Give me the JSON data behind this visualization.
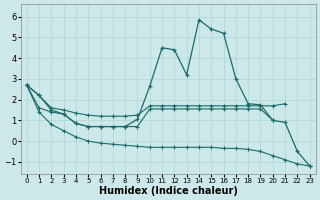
{
  "xlabel": "Humidex (Indice chaleur)",
  "bg_color": "#cce8e8",
  "grid_color": "#b0d4d4",
  "line_color": "#1a6b6b",
  "xlim": [
    -0.5,
    23.5
  ],
  "ylim": [
    -1.6,
    6.6
  ],
  "xticks": [
    0,
    1,
    2,
    3,
    4,
    5,
    6,
    7,
    8,
    9,
    10,
    11,
    12,
    13,
    14,
    15,
    16,
    17,
    18,
    19,
    20,
    21,
    22,
    23
  ],
  "yticks": [
    -1,
    0,
    1,
    2,
    3,
    4,
    5,
    6
  ],
  "line1_x": [
    0,
    1,
    2,
    3,
    4,
    5,
    6,
    7,
    8,
    9,
    10,
    11,
    12,
    13,
    14,
    15,
    16,
    17,
    18,
    19,
    20,
    21,
    22,
    23
  ],
  "line1_y": [
    2.7,
    2.2,
    1.5,
    1.3,
    0.85,
    0.7,
    0.7,
    0.7,
    0.7,
    1.05,
    2.65,
    4.5,
    4.4,
    3.2,
    5.85,
    5.4,
    5.2,
    3.0,
    1.8,
    1.75,
    1.0,
    0.9,
    -0.5,
    -1.2
  ],
  "line2_x": [
    0,
    1,
    2,
    3,
    4,
    5,
    6,
    7,
    8,
    9,
    10,
    11,
    12,
    13,
    14,
    15,
    16,
    17,
    18,
    19,
    20,
    21
  ],
  "line2_y": [
    2.7,
    2.2,
    1.6,
    1.5,
    1.35,
    1.25,
    1.2,
    1.2,
    1.2,
    1.25,
    1.7,
    1.7,
    1.7,
    1.7,
    1.7,
    1.7,
    1.7,
    1.7,
    1.7,
    1.7,
    1.7,
    1.8
  ],
  "line3_x": [
    0,
    1,
    2,
    3,
    4,
    5,
    6,
    7,
    8,
    9,
    10,
    11,
    12,
    13,
    14,
    15,
    16,
    17,
    18,
    19,
    20
  ],
  "line3_y": [
    2.7,
    1.6,
    1.4,
    1.3,
    0.85,
    0.7,
    0.7,
    0.7,
    0.7,
    0.7,
    1.55,
    1.55,
    1.55,
    1.55,
    1.55,
    1.55,
    1.55,
    1.55,
    1.55,
    1.55,
    1.0
  ],
  "line4_x": [
    0,
    1,
    2,
    3,
    4,
    5,
    6,
    7,
    8,
    9,
    10,
    11,
    12,
    13,
    14,
    15,
    16,
    17,
    18,
    19,
    20,
    21,
    22,
    23
  ],
  "line4_y": [
    2.7,
    1.4,
    0.8,
    0.5,
    0.2,
    0.0,
    -0.1,
    -0.15,
    -0.2,
    -0.25,
    -0.3,
    -0.3,
    -0.3,
    -0.3,
    -0.3,
    -0.3,
    -0.35,
    -0.35,
    -0.4,
    -0.5,
    -0.7,
    -0.9,
    -1.1,
    -1.2
  ]
}
